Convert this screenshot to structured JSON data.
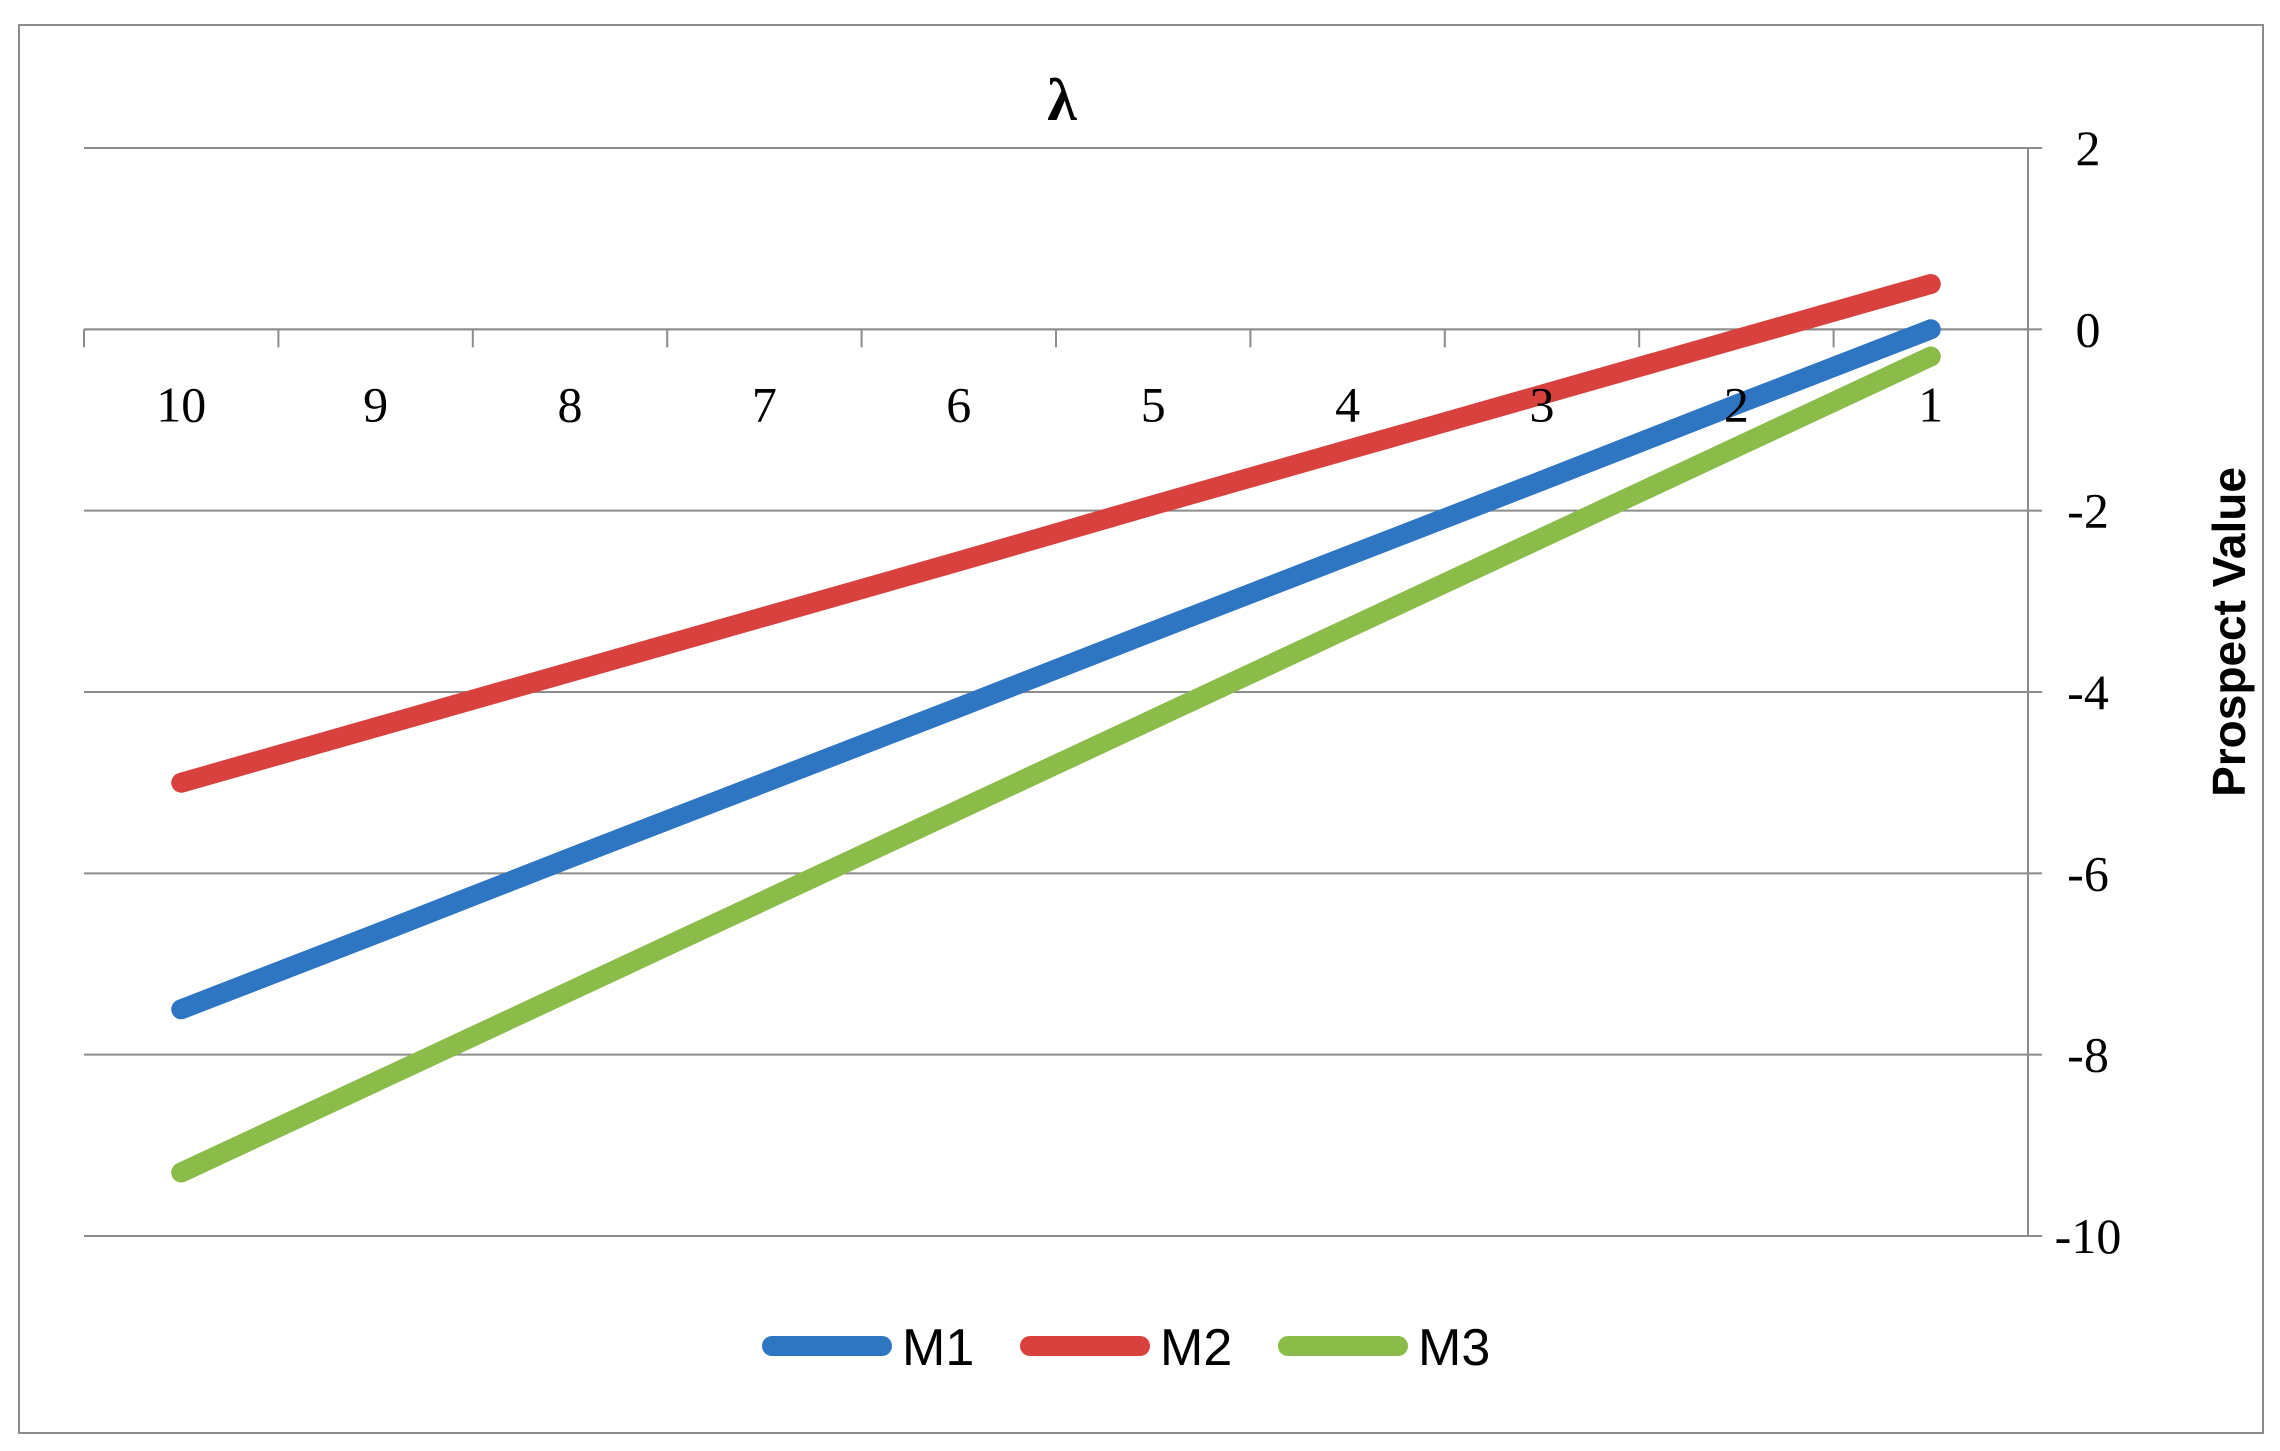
{
  "chart_data": {
    "type": "line",
    "title": "λ",
    "xlabel": "",
    "ylabel": "Prospect Value",
    "categories": [
      "10",
      "9",
      "8",
      "7",
      "6",
      "5",
      "4",
      "3",
      "2",
      "1"
    ],
    "x_axis_crosses_at": 0,
    "ylim": [
      -10,
      2
    ],
    "yticks": [
      "2",
      "0",
      "-2",
      "-4",
      "-6",
      "-8",
      "-10"
    ],
    "y_axis_position": "right",
    "grid": true,
    "legend_position": "bottom",
    "series": [
      {
        "name": "M1",
        "color": "#2e75c2",
        "values": [
          -7.5,
          -6.67,
          -5.83,
          -5.0,
          -4.17,
          -3.33,
          -2.5,
          -1.67,
          -0.83,
          0.0
        ]
      },
      {
        "name": "M2",
        "color": "#d9413e",
        "values": [
          -5.0,
          -4.39,
          -3.78,
          -3.17,
          -2.56,
          -1.94,
          -1.33,
          -0.72,
          -0.11,
          0.5
        ]
      },
      {
        "name": "M3",
        "color": "#8bbb49",
        "values": [
          -9.3,
          -8.3,
          -7.3,
          -6.3,
          -5.3,
          -4.3,
          -3.3,
          -2.3,
          -1.3,
          -0.3
        ]
      }
    ]
  }
}
